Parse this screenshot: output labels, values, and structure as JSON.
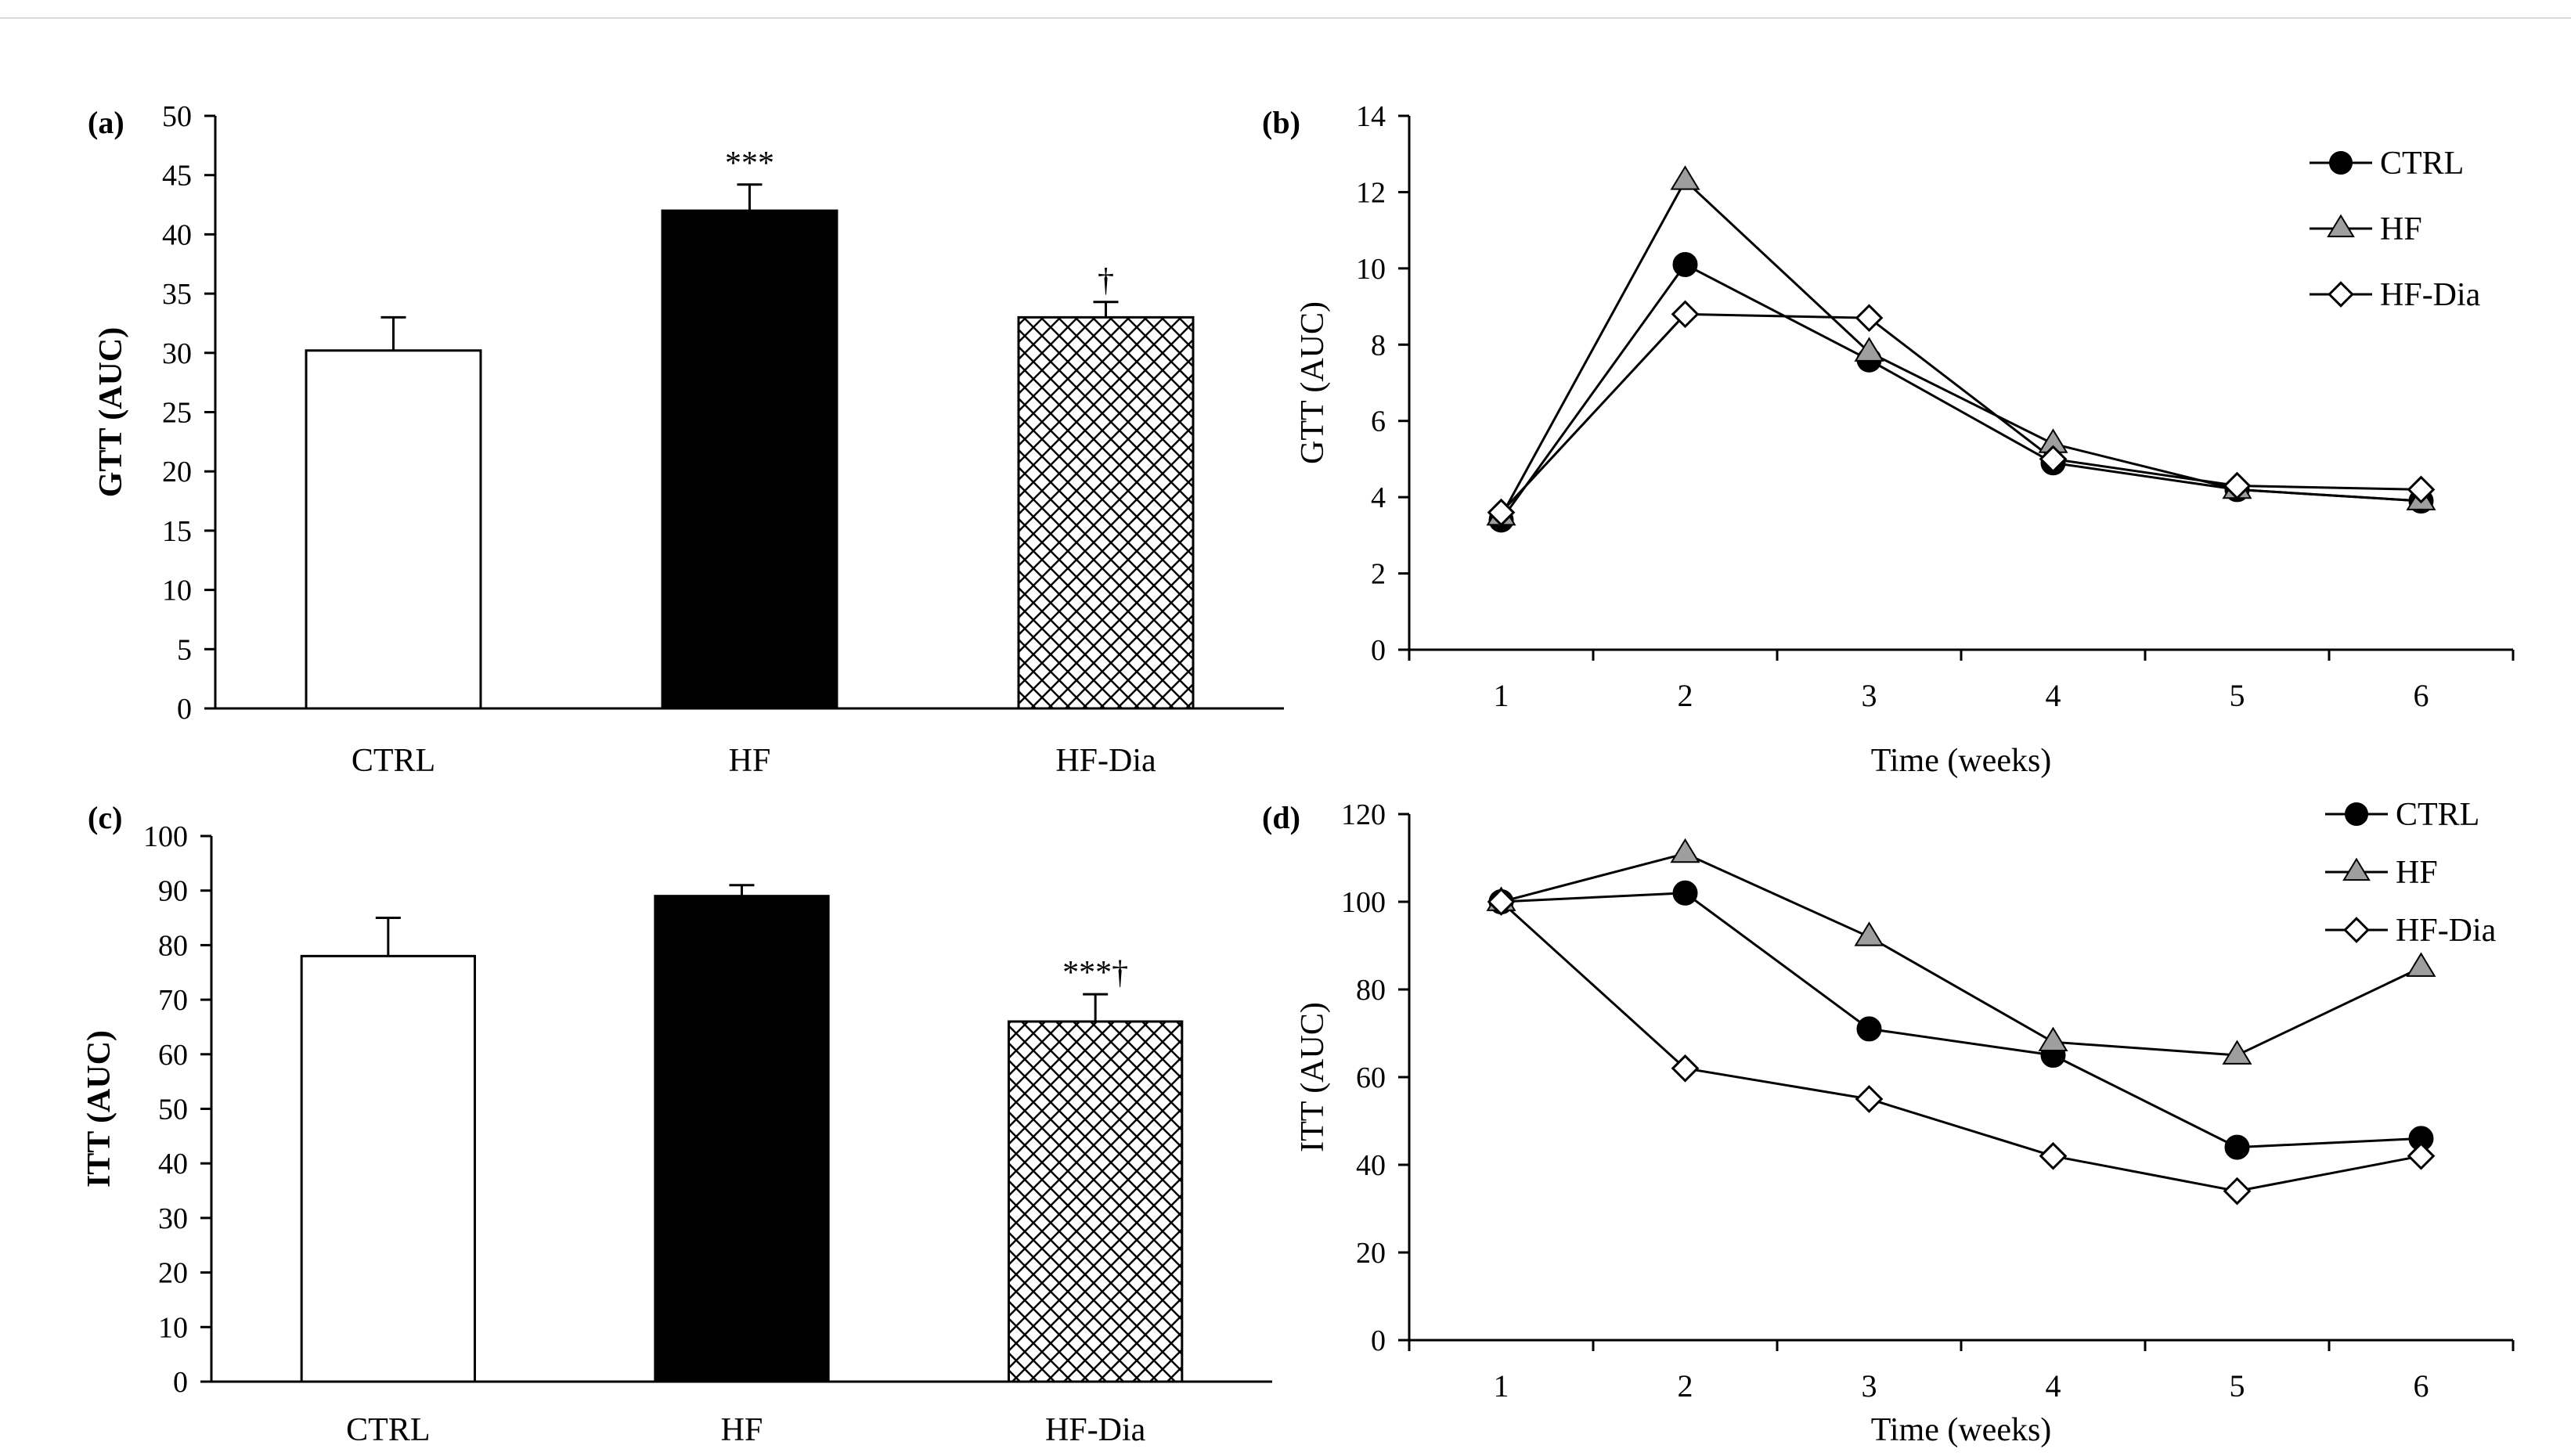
{
  "colors": {
    "axis": "#000000",
    "ctrl_fill": "#ffffff",
    "hf_fill": "#000000",
    "hf_marker": "#9e9e9e",
    "hatch": "#000000",
    "line": "#000000"
  },
  "chart_data": [
    {
      "type": "bar",
      "panel_label": "(a)",
      "ylabel": "GTT (AUC)",
      "xlabel": "",
      "categories": [
        "CTRL",
        "HF",
        "HF-Dia"
      ],
      "values": [
        30.2,
        42.0,
        33.0
      ],
      "errors": [
        2.8,
        2.2,
        1.3
      ],
      "significance": [
        "",
        "***",
        "†"
      ],
      "fills": [
        "white",
        "black",
        "hatch"
      ],
      "ylim": [
        0,
        50
      ],
      "yticks": [
        0,
        5,
        10,
        15,
        20,
        25,
        30,
        35,
        40,
        45,
        50
      ],
      "grid": false
    },
    {
      "type": "line",
      "panel_label": "(b)",
      "ylabel": "GTT (AUC)",
      "xlabel": "Time (weeks)",
      "x": [
        1,
        2,
        3,
        4,
        5,
        6
      ],
      "series": [
        {
          "name": "CTRL",
          "marker": "circle",
          "values": [
            3.4,
            10.1,
            7.6,
            4.9,
            4.2,
            3.9
          ]
        },
        {
          "name": "HF",
          "marker": "triangle",
          "values": [
            3.5,
            12.3,
            7.8,
            5.4,
            4.2,
            3.9
          ]
        },
        {
          "name": "HF-Dia",
          "marker": "diamond",
          "values": [
            3.6,
            8.8,
            8.7,
            5.0,
            4.3,
            4.2
          ]
        }
      ],
      "ylim": [
        0,
        14
      ],
      "yticks": [
        0,
        2,
        4,
        6,
        8,
        10,
        12,
        14
      ],
      "legend": "top-right",
      "grid": false
    },
    {
      "type": "bar",
      "panel_label": "(c)",
      "ylabel": "ITT (AUC)",
      "xlabel": "",
      "categories": [
        "CTRL",
        "HF",
        "HF-Dia"
      ],
      "values": [
        78.0,
        89.0,
        66.0
      ],
      "errors": [
        7.0,
        2.0,
        5.0
      ],
      "significance": [
        "",
        "",
        "***†"
      ],
      "fills": [
        "white",
        "black",
        "hatch"
      ],
      "ylim": [
        0,
        100
      ],
      "yticks": [
        0,
        10,
        20,
        30,
        40,
        50,
        60,
        70,
        80,
        90,
        100
      ],
      "grid": false
    },
    {
      "type": "line",
      "panel_label": "(d)",
      "ylabel": "ITT (AUC)",
      "xlabel": "Time (weeks)",
      "x": [
        1,
        2,
        3,
        4,
        5,
        6
      ],
      "series": [
        {
          "name": "CTRL",
          "marker": "circle",
          "values": [
            100,
            102,
            71,
            65,
            44,
            46
          ]
        },
        {
          "name": "HF",
          "marker": "triangle",
          "values": [
            100,
            111,
            92,
            68,
            65,
            85
          ]
        },
        {
          "name": "HF-Dia",
          "marker": "diamond",
          "values": [
            100,
            62,
            55,
            42,
            34,
            42
          ]
        }
      ],
      "ylim": [
        0,
        120
      ],
      "yticks": [
        0,
        20,
        40,
        60,
        80,
        100,
        120
      ],
      "legend": "top-right",
      "grid": false
    }
  ]
}
